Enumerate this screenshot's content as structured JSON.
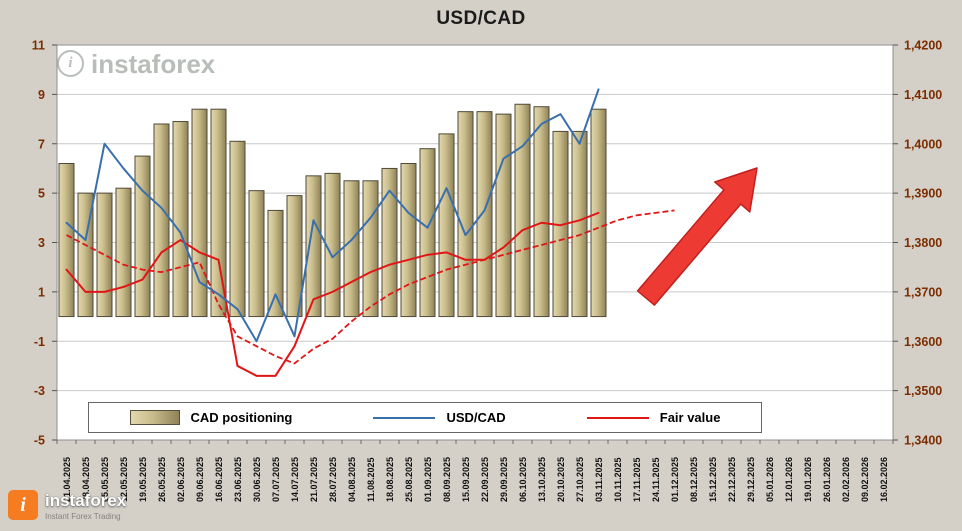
{
  "page": {
    "background": "#d4d0c8"
  },
  "title": "USD/CAD",
  "watermark": {
    "text": "instaforex"
  },
  "brand": {
    "name": "instaforex",
    "tagline": "Instant Forex Trading",
    "accent_color": "#f57c20"
  },
  "legend": {
    "items": [
      {
        "label": "CAD positioning",
        "swatch": "bar",
        "color": "#c9bc8b"
      },
      {
        "label": "USD/CAD",
        "swatch": "line",
        "color": "#3a6fad"
      },
      {
        "label": "Fair value",
        "swatch": "line",
        "color": "#e01616"
      }
    ]
  },
  "chart_data": {
    "type": "bar+line combo",
    "title": "USD/CAD",
    "grid": "horizontal",
    "legend_position": "bottom",
    "x_labels": [
      "21.04.2025",
      "28.04.2025",
      "05.05.2025",
      "12.05.2025",
      "19.05.2025",
      "26.05.2025",
      "02.06.2025",
      "09.06.2025",
      "16.06.2025",
      "23.06.2025",
      "30.06.2025",
      "07.07.2025",
      "14.07.2025",
      "21.07.2025",
      "28.07.2025",
      "04.08.2025",
      "11.08.2025",
      "18.08.2025",
      "25.08.2025",
      "01.09.2025",
      "08.09.2025",
      "15.09.2025",
      "22.09.2025",
      "29.09.2025",
      "06.10.2025",
      "13.10.2025",
      "20.10.2025",
      "27.10.2025",
      "03.11.2025",
      "10.11.2025",
      "17.11.2025",
      "24.11.2025",
      "01.12.2025",
      "08.12.2025",
      "15.12.2025",
      "22.12.2025",
      "29.12.2025",
      "05.01.2026",
      "12.01.2026",
      "19.01.2026",
      "26.01.2026",
      "02.02.2026",
      "09.02.2026",
      "16.02.2026"
    ],
    "left_axis": {
      "min": -5,
      "max": 11,
      "tick_labels": [
        "11",
        "9",
        "7",
        "5",
        "3",
        "1",
        "-1",
        "-3",
        "-5"
      ],
      "label_color": "#7c2d00"
    },
    "right_axis": {
      "min": 1.34,
      "max": 1.42,
      "tick_labels": [
        "1,4200",
        "1,4100",
        "1,4000",
        "1,3900",
        "1,3800",
        "1,3700",
        "1,3600",
        "1,3500",
        "1,3400"
      ],
      "label_color": "#7c2d00"
    },
    "series": [
      {
        "name": "CAD positioning",
        "type": "bar",
        "axis": "left",
        "color": "#c9bc8b",
        "edge_color": "#4f4a38",
        "values": [
          6.2,
          5.0,
          5.0,
          5.2,
          6.5,
          7.8,
          7.9,
          8.4,
          8.4,
          7.1,
          5.1,
          4.3,
          4.9,
          5.7,
          5.8,
          5.5,
          5.5,
          6.0,
          6.2,
          6.8,
          7.4,
          8.3,
          8.3,
          8.2,
          8.6,
          8.5,
          7.5,
          7.5,
          8.4
        ]
      },
      {
        "name": "USD/CAD",
        "type": "line",
        "axis": "right",
        "color": "#3a6fad",
        "values": [
          1.384,
          1.3805,
          1.4,
          1.395,
          1.3905,
          1.387,
          1.382,
          1.372,
          1.3695,
          1.3665,
          1.36,
          1.3695,
          1.361,
          1.3845,
          1.377,
          1.3805,
          1.385,
          1.3905,
          1.386,
          1.383,
          1.391,
          1.3815,
          1.3865,
          1.397,
          1.3995,
          1.404,
          1.406,
          1.4,
          1.411
        ]
      },
      {
        "name": "Fair value",
        "type": "line",
        "axis": "right",
        "color": "#e01616",
        "values": [
          1.3745,
          1.37,
          1.37,
          1.371,
          1.3725,
          1.378,
          1.3805,
          1.378,
          1.3765,
          1.355,
          1.353,
          1.353,
          1.359,
          1.3685,
          1.37,
          1.372,
          1.374,
          1.3755,
          1.3765,
          1.3775,
          1.378,
          1.3765,
          1.3765,
          1.379,
          1.3825,
          1.384,
          1.3835,
          1.3845,
          1.386
        ]
      },
      {
        "name": "Fair value projection",
        "type": "line-dashed",
        "axis": "right",
        "color": "#e01616",
        "values": [
          1.3815,
          1.3795,
          1.3775,
          1.3755,
          1.3745,
          1.374,
          1.375,
          1.376,
          1.3675,
          1.361,
          1.359,
          1.357,
          1.3555,
          1.3585,
          1.3605,
          1.364,
          1.367,
          1.3695,
          1.3715,
          1.373,
          1.3745,
          1.3755,
          1.3765,
          1.3775,
          1.3785,
          1.3795,
          1.3805,
          1.3815,
          1.383,
          1.3845,
          1.3855,
          1.386,
          1.3865
        ]
      }
    ],
    "annotations": [
      {
        "type": "arrow",
        "direction": "up-right",
        "color": "#ed3b33",
        "edge_color": "#c21f1f"
      }
    ]
  }
}
